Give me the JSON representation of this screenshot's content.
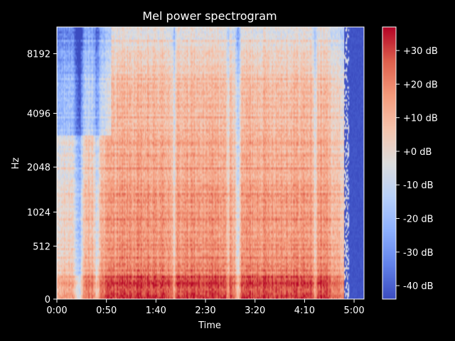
{
  "chart_data": {
    "type": "heatmap",
    "title": "Mel power spectrogram",
    "xlabel": "Time",
    "ylabel": "Hz",
    "x_ticks": [
      "0:00",
      "0:50",
      "1:40",
      "2:30",
      "3:20",
      "4:10",
      "5:00"
    ],
    "x_tick_seconds": [
      0,
      50,
      100,
      150,
      200,
      250,
      300
    ],
    "xlim_seconds": [
      0,
      310
    ],
    "y_scale": "mel",
    "y_ticks": [
      "0",
      "512",
      "1024",
      "2048",
      "4096",
      "8192"
    ],
    "y_tick_hz": [
      0,
      512,
      1024,
      2048,
      4096,
      8192
    ],
    "ylim_hz": [
      0,
      11025
    ],
    "colorbar": {
      "colormap": "coolwarm",
      "ticks": [
        "+30 dB",
        "+20 dB",
        "+10 dB",
        "+0 dB",
        "-10 dB",
        "-20 dB",
        "-30 dB",
        "-40 dB"
      ],
      "tick_values": [
        30,
        20,
        10,
        0,
        -10,
        -20,
        -30,
        -40
      ],
      "range_db": [
        -44,
        37
      ]
    },
    "colors": {
      "background": "#000000",
      "text": "#ffffff",
      "cold": "#3b4cc0",
      "neutral": "#dddddd",
      "hot": "#b40426"
    }
  }
}
